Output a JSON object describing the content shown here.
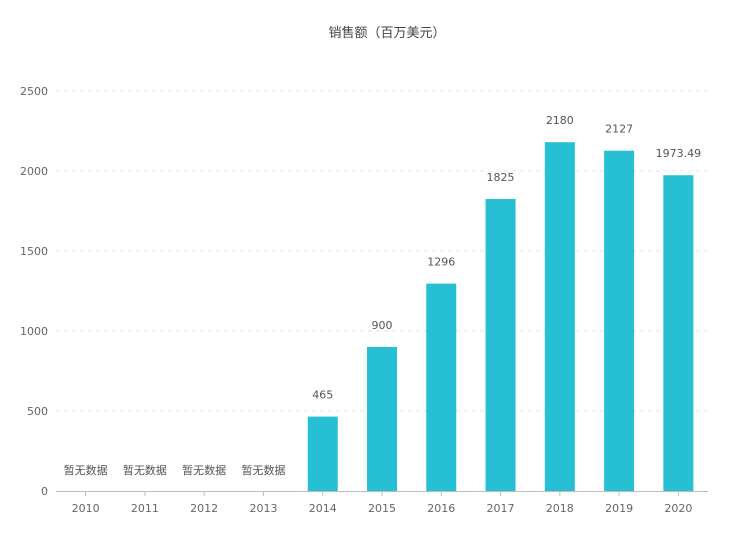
{
  "chart_data": {
    "type": "bar",
    "title": "销售额（百万美元）",
    "xlabel": "",
    "ylabel": "",
    "categories": [
      "2010",
      "2011",
      "2012",
      "2013",
      "2014",
      "2015",
      "2016",
      "2017",
      "2018",
      "2019",
      "2020"
    ],
    "values": [
      null,
      null,
      null,
      null,
      465,
      900,
      1296,
      1825,
      2180,
      2127,
      1973.49
    ],
    "data_labels": [
      "暂无数据",
      "暂无数据",
      "暂无数据",
      "暂无数据",
      "465",
      "900",
      "1296",
      "1825",
      "2180",
      "2127",
      "1973.49"
    ],
    "ylim": [
      0,
      2500
    ],
    "yticks": [
      0,
      500,
      1000,
      1500,
      2000,
      2500
    ],
    "grid": true,
    "legend": "none",
    "bar_color": "#26bfd3"
  }
}
